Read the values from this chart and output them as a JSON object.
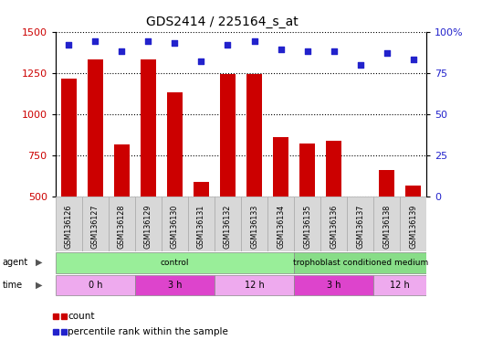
{
  "title": "GDS2414 / 225164_s_at",
  "samples": [
    "GSM136126",
    "GSM136127",
    "GSM136128",
    "GSM136129",
    "GSM136130",
    "GSM136131",
    "GSM136132",
    "GSM136133",
    "GSM136134",
    "GSM136135",
    "GSM136136",
    "GSM136137",
    "GSM136138",
    "GSM136139"
  ],
  "counts": [
    1215,
    1330,
    815,
    1330,
    1130,
    590,
    1240,
    1240,
    860,
    820,
    840,
    500,
    660,
    565
  ],
  "percentile_ranks": [
    92,
    94,
    88,
    94,
    93,
    82,
    92,
    94,
    89,
    88,
    88,
    80,
    87,
    83
  ],
  "ymin": 500,
  "ymax": 1500,
  "yticks": [
    500,
    750,
    1000,
    1250,
    1500
  ],
  "y2min": 0,
  "y2max": 100,
  "y2ticks": [
    0,
    25,
    50,
    75,
    100
  ],
  "y2ticklabels": [
    "0",
    "25",
    "50",
    "75",
    "100%"
  ],
  "bar_color": "#cc0000",
  "dot_color": "#2222cc",
  "background_color": "#ffffff",
  "plot_bg_color": "#ffffff",
  "grid_color": "#000000",
  "tick_label_color_left": "#cc0000",
  "tick_label_color_right": "#2222cc",
  "bar_width": 0.6,
  "agent_groups": [
    {
      "label": "control",
      "xstart": 0,
      "xend": 9,
      "color": "#99ee99"
    },
    {
      "label": "trophoblast conditioned medium",
      "xstart": 9,
      "xend": 14,
      "color": "#88dd88"
    }
  ],
  "time_groups": [
    {
      "label": "0 h",
      "xstart": 0,
      "xend": 3,
      "color": "#eeaaee"
    },
    {
      "label": "3 h",
      "xstart": 3,
      "xend": 6,
      "color": "#dd44cc"
    },
    {
      "label": "12 h",
      "xstart": 6,
      "xend": 9,
      "color": "#eeaaee"
    },
    {
      "label": "3 h",
      "xstart": 9,
      "xend": 12,
      "color": "#dd44cc"
    },
    {
      "label": "12 h",
      "xstart": 12,
      "xend": 14,
      "color": "#eeaaee"
    }
  ],
  "label_bg_color": "#d8d8d8",
  "legend_count_color": "#cc0000",
  "legend_dot_color": "#2222cc"
}
